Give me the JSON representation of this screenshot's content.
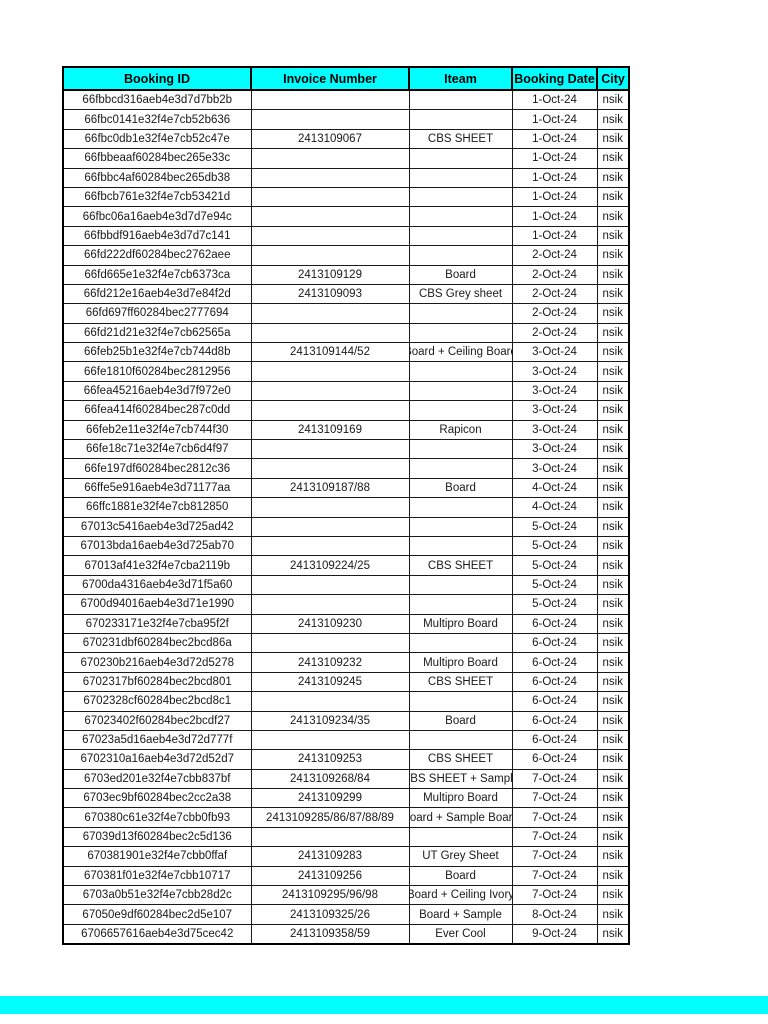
{
  "page": {
    "background": "#ffffff",
    "footer_band_color": "#00ffff"
  },
  "table": {
    "header_bg": "#00ffff",
    "header_text_color": "#000000",
    "border_color": "#000000",
    "headers": [
      "Booking ID",
      "Invoice Number",
      "Iteam",
      "Booking Date",
      "City"
    ],
    "rows": [
      {
        "booking_id": "66fbbcd316aeb4e3d7d7bb2b",
        "invoice_number": "",
        "item": "",
        "booking_date": "1-Oct-24",
        "city": "nsik"
      },
      {
        "booking_id": "66fbc0141e32f4e7cb52b636",
        "invoice_number": "",
        "item": "",
        "booking_date": "1-Oct-24",
        "city": "nsik"
      },
      {
        "booking_id": "66fbc0db1e32f4e7cb52c47e",
        "invoice_number": "2413109067",
        "item": "CBS SHEET",
        "booking_date": "1-Oct-24",
        "city": "nsik"
      },
      {
        "booking_id": "66fbbeaaf60284bec265e33c",
        "invoice_number": "",
        "item": "",
        "booking_date": "1-Oct-24",
        "city": "nsik"
      },
      {
        "booking_id": "66fbbc4af60284bec265db38",
        "invoice_number": "",
        "item": "",
        "booking_date": "1-Oct-24",
        "city": "nsik"
      },
      {
        "booking_id": "66fbcb761e32f4e7cb53421d",
        "invoice_number": "",
        "item": "",
        "booking_date": "1-Oct-24",
        "city": "nsik"
      },
      {
        "booking_id": "66fbc06a16aeb4e3d7d7e94c",
        "invoice_number": "",
        "item": "",
        "booking_date": "1-Oct-24",
        "city": "nsik"
      },
      {
        "booking_id": "66fbbdf916aeb4e3d7d7c141",
        "invoice_number": "",
        "item": "",
        "booking_date": "1-Oct-24",
        "city": "nsik"
      },
      {
        "booking_id": "66fd222df60284bec2762aee",
        "invoice_number": "",
        "item": "",
        "booking_date": "2-Oct-24",
        "city": "nsik"
      },
      {
        "booking_id": "66fd665e1e32f4e7cb6373ca",
        "invoice_number": "2413109129",
        "item": "Board",
        "booking_date": "2-Oct-24",
        "city": "nsik"
      },
      {
        "booking_id": "66fd212e16aeb4e3d7e84f2d",
        "invoice_number": "2413109093",
        "item": "CBS Grey sheet",
        "booking_date": "2-Oct-24",
        "city": "nsik"
      },
      {
        "booking_id": "66fd697ff60284bec2777694",
        "invoice_number": "",
        "item": "",
        "booking_date": "2-Oct-24",
        "city": "nsik"
      },
      {
        "booking_id": "66fd21d21e32f4e7cb62565a",
        "invoice_number": "",
        "item": "",
        "booking_date": "2-Oct-24",
        "city": "nsik"
      },
      {
        "booking_id": "66feb25b1e32f4e7cb744d8b",
        "invoice_number": "2413109144/52",
        "item": "Board + Ceiling Board",
        "booking_date": "3-Oct-24",
        "city": "nsik"
      },
      {
        "booking_id": "66fe1810f60284bec2812956",
        "invoice_number": "",
        "item": "",
        "booking_date": "3-Oct-24",
        "city": "nsik"
      },
      {
        "booking_id": "66fea45216aeb4e3d7f972e0",
        "invoice_number": "",
        "item": "",
        "booking_date": "3-Oct-24",
        "city": "nsik"
      },
      {
        "booking_id": "66fea414f60284bec287c0dd",
        "invoice_number": "",
        "item": "",
        "booking_date": "3-Oct-24",
        "city": "nsik"
      },
      {
        "booking_id": "66feb2e11e32f4e7cb744f30",
        "invoice_number": "2413109169",
        "item": "Rapicon",
        "booking_date": "3-Oct-24",
        "city": "nsik"
      },
      {
        "booking_id": "66fe18c71e32f4e7cb6d4f97",
        "invoice_number": "",
        "item": "",
        "booking_date": "3-Oct-24",
        "city": "nsik"
      },
      {
        "booking_id": "66fe197df60284bec2812c36",
        "invoice_number": "",
        "item": "",
        "booking_date": "3-Oct-24",
        "city": "nsik"
      },
      {
        "booking_id": "66ffe5e916aeb4e3d71177aa",
        "invoice_number": "2413109187/88",
        "item": "Board",
        "booking_date": "4-Oct-24",
        "city": "nsik"
      },
      {
        "booking_id": "66ffc1881e32f4e7cb812850",
        "invoice_number": "",
        "item": "",
        "booking_date": "4-Oct-24",
        "city": "nsik"
      },
      {
        "booking_id": "67013c5416aeb4e3d725ad42",
        "invoice_number": "",
        "item": "",
        "booking_date": "5-Oct-24",
        "city": "nsik"
      },
      {
        "booking_id": "67013bda16aeb4e3d725ab70",
        "invoice_number": "",
        "item": "",
        "booking_date": "5-Oct-24",
        "city": "nsik"
      },
      {
        "booking_id": "67013af41e32f4e7cba2119b",
        "invoice_number": "2413109224/25",
        "item": "CBS SHEET",
        "booking_date": "5-Oct-24",
        "city": "nsik"
      },
      {
        "booking_id": "6700da4316aeb4e3d71f5a60",
        "invoice_number": "",
        "item": "",
        "booking_date": "5-Oct-24",
        "city": "nsik"
      },
      {
        "booking_id": "6700d94016aeb4e3d71e1990",
        "invoice_number": "",
        "item": "",
        "booking_date": "5-Oct-24",
        "city": "nsik"
      },
      {
        "booking_id": "670233171e32f4e7cba95f2f",
        "invoice_number": "2413109230",
        "item": "Multipro Board",
        "booking_date": "6-Oct-24",
        "city": "nsik"
      },
      {
        "booking_id": "670231dbf60284bec2bcd86a",
        "invoice_number": "",
        "item": "",
        "booking_date": "6-Oct-24",
        "city": "nsik"
      },
      {
        "booking_id": "670230b216aeb4e3d72d5278",
        "invoice_number": "2413109232",
        "item": "Multipro Board",
        "booking_date": "6-Oct-24",
        "city": "nsik"
      },
      {
        "booking_id": "6702317bf60284bec2bcd801",
        "invoice_number": "2413109245",
        "item": "CBS SHEET",
        "booking_date": "6-Oct-24",
        "city": "nsik"
      },
      {
        "booking_id": "6702328cf60284bec2bcd8c1",
        "invoice_number": "",
        "item": "",
        "booking_date": "6-Oct-24",
        "city": "nsik"
      },
      {
        "booking_id": "67023402f60284bec2bcdf27",
        "invoice_number": "2413109234/35",
        "item": "Board",
        "booking_date": "6-Oct-24",
        "city": "nsik"
      },
      {
        "booking_id": "67023a5d16aeb4e3d72d777f",
        "invoice_number": "",
        "item": "",
        "booking_date": "6-Oct-24",
        "city": "nsik"
      },
      {
        "booking_id": "6702310a16aeb4e3d72d52d7",
        "invoice_number": "2413109253",
        "item": "CBS SHEET",
        "booking_date": "6-Oct-24",
        "city": "nsik"
      },
      {
        "booking_id": "6703ed201e32f4e7cbb837bf",
        "invoice_number": "2413109268/84",
        "item": "CBS SHEET + Sample",
        "booking_date": "7-Oct-24",
        "city": "nsik"
      },
      {
        "booking_id": "6703ec9bf60284bec2cc2a38",
        "invoice_number": "2413109299",
        "item": "Multipro Board",
        "booking_date": "7-Oct-24",
        "city": "nsik"
      },
      {
        "booking_id": "670380c61e32f4e7cbb0fb93",
        "invoice_number": "2413109285/86/87/88/89",
        "item": "Board + Sample Board",
        "booking_date": "7-Oct-24",
        "city": "nsik"
      },
      {
        "booking_id": "67039d13f60284bec2c5d136",
        "invoice_number": "",
        "item": "",
        "booking_date": "7-Oct-24",
        "city": "nsik"
      },
      {
        "booking_id": "670381901e32f4e7cbb0ffaf",
        "invoice_number": "2413109283",
        "item": "UT Grey Sheet",
        "booking_date": "7-Oct-24",
        "city": "nsik"
      },
      {
        "booking_id": "670381f01e32f4e7cbb10717",
        "invoice_number": "2413109256",
        "item": "Board",
        "booking_date": "7-Oct-24",
        "city": "nsik"
      },
      {
        "booking_id": "6703a0b51e32f4e7cbb28d2c",
        "invoice_number": "2413109295/96/98",
        "item": "Board + Ceiling Ivory",
        "booking_date": "7-Oct-24",
        "city": "nsik"
      },
      {
        "booking_id": "67050e9df60284bec2d5e107",
        "invoice_number": "2413109325/26",
        "item": "Board + Sample",
        "booking_date": "8-Oct-24",
        "city": "nsik"
      },
      {
        "booking_id": "6706657616aeb4e3d75cec42",
        "invoice_number": "2413109358/59",
        "item": "Ever Cool",
        "booking_date": "9-Oct-24",
        "city": "nsik"
      }
    ]
  }
}
